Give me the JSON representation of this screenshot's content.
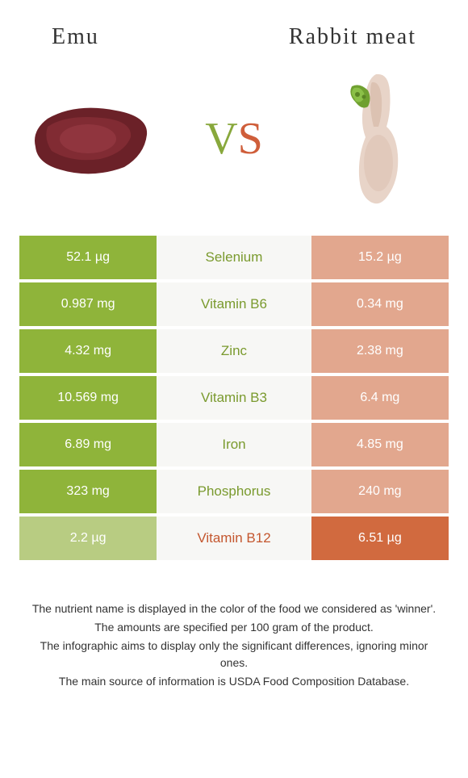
{
  "header": {
    "left_title": "Emu",
    "right_title": "Rabbit meat",
    "vs_v": "V",
    "vs_s": "S"
  },
  "colors": {
    "left_food": "#8fb43a",
    "right_food": "#d16a3f",
    "left_faded": "#b8cc82",
    "right_faded": "#e2a78e",
    "mid_bg": "#f7f7f5",
    "nutrient_left_win": "#7a9a2e",
    "nutrient_right_win": "#c4572f"
  },
  "rows": [
    {
      "nutrient": "Selenium",
      "left_val": "52.1 µg",
      "right_val": "15.2 µg",
      "winner": "left"
    },
    {
      "nutrient": "Vitamin B6",
      "left_val": "0.987 mg",
      "right_val": "0.34 mg",
      "winner": "left"
    },
    {
      "nutrient": "Zinc",
      "left_val": "4.32 mg",
      "right_val": "2.38 mg",
      "winner": "left"
    },
    {
      "nutrient": "Vitamin B3",
      "left_val": "10.569 mg",
      "right_val": "6.4 mg",
      "winner": "left"
    },
    {
      "nutrient": "Iron",
      "left_val": "6.89 mg",
      "right_val": "4.85 mg",
      "winner": "left"
    },
    {
      "nutrient": "Phosphorus",
      "left_val": "323 mg",
      "right_val": "240 mg",
      "winner": "left"
    },
    {
      "nutrient": "Vitamin B12",
      "left_val": "2.2 µg",
      "right_val": "6.51 µg",
      "winner": "right"
    }
  ],
  "footnotes": {
    "line1": "The nutrient name is displayed in the color of the food we considered as 'winner'.",
    "line2": "The amounts are specified per 100 gram of the product.",
    "line3": "The infographic aims to display only the significant differences, ignoring minor ones.",
    "line4": "The main source of information is USDA Food Composition Database."
  }
}
